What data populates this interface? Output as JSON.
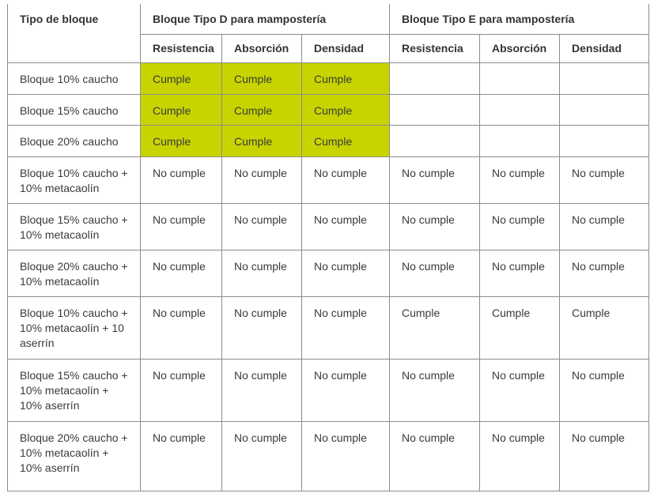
{
  "table": {
    "header": {
      "first": "Tipo de bloque",
      "groups": [
        "Bloque Tipo D para mampostería",
        "Bloque Tipo E para mampostería"
      ],
      "subheaders": [
        "Resistencia",
        "Absorción",
        "Densidad",
        "Resistencia",
        "Absorción",
        "Densidad"
      ]
    },
    "highlight_color": "#c8d400",
    "rows": [
      {
        "label": [
          "Bloque 10% caucho"
        ],
        "highlighted": true,
        "cells": [
          "Cumple",
          "Cumple",
          "Cumple",
          null,
          null,
          null
        ]
      },
      {
        "label": [
          "Bloque 15% caucho"
        ],
        "highlighted": true,
        "cells": [
          "Cumple",
          "Cumple",
          "Cumple",
          null,
          null,
          null
        ]
      },
      {
        "label": [
          "Bloque 20% caucho"
        ],
        "highlighted": true,
        "cells": [
          "Cumple",
          "Cumple",
          "Cumple",
          null,
          null,
          null
        ]
      },
      {
        "label": [
          "Bloque 10% caucho +",
          "10% metacaolín"
        ],
        "highlighted": false,
        "cells": [
          "No cumple",
          "No cumple",
          "No cumple",
          "No cumple",
          "No cumple",
          "No cumple"
        ]
      },
      {
        "label": [
          "Bloque 15% caucho +",
          "10% metacaolín"
        ],
        "highlighted": false,
        "cells": [
          "No cumple",
          "No cumple",
          "No cumple",
          "No cumple",
          "No cumple",
          "No cumple"
        ]
      },
      {
        "label": [
          "Bloque 20% caucho +",
          "10% metacaolín"
        ],
        "highlighted": false,
        "cells": [
          "No cumple",
          "No cumple",
          "No cumple",
          "No cumple",
          "No cumple",
          "No cumple"
        ]
      },
      {
        "label": [
          "Bloque 10% caucho +",
          "10% metacaolín + 10",
          "aserrín"
        ],
        "highlighted": false,
        "cells": [
          "No cumple",
          "No cumple",
          "No cumple",
          "Cumple",
          "Cumple",
          "Cumple"
        ]
      },
      {
        "label": [
          "Bloque 15% caucho +",
          "10% metacaolín +",
          "10% aserrín"
        ],
        "highlighted": false,
        "cells": [
          "No cumple",
          "No cumple",
          "No cumple",
          "No cumple",
          "No cumple",
          "No cumple"
        ]
      },
      {
        "label": [
          "Bloque 20% caucho +",
          "10% metacaolín +",
          "10% aserrín"
        ],
        "highlighted": false,
        "cells": [
          "No cumple",
          "No cumple",
          "No cumple",
          "No cumple",
          "No cumple",
          "No cumple"
        ]
      }
    ]
  }
}
